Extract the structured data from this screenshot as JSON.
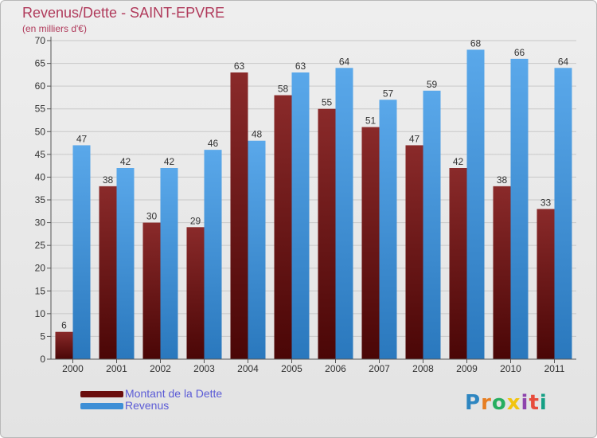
{
  "chart_data": {
    "type": "bar",
    "title": "Revenus/Dette - SAINT-EPVRE",
    "subtitle": "(en milliers d'€)",
    "categories": [
      "2000",
      "2001",
      "2002",
      "2003",
      "2004",
      "2005",
      "2006",
      "2007",
      "2008",
      "2009",
      "2010",
      "2011"
    ],
    "series": [
      {
        "name": "Montant de la Dette",
        "color": "#7a1a1a",
        "values": [
          6,
          38,
          30,
          29,
          63,
          58,
          55,
          51,
          47,
          42,
          38,
          33
        ]
      },
      {
        "name": "Revenus",
        "color": "#3d8fd6",
        "values": [
          47,
          42,
          42,
          46,
          48,
          63,
          64,
          57,
          59,
          68,
          66,
          64
        ]
      }
    ],
    "yticks": [
      0,
      5,
      10,
      15,
      20,
      25,
      30,
      35,
      40,
      45,
      50,
      55,
      60,
      65,
      70
    ],
    "ylim": [
      0,
      70
    ],
    "grid": true,
    "legend_position": "bottom-left"
  },
  "logo": {
    "letters": [
      "P",
      "r",
      "o",
      "x",
      "i",
      "t",
      "i"
    ],
    "colors": [
      "#2e86c1",
      "#e67e22",
      "#27ae60",
      "#f1c40f",
      "#8e44ad",
      "#e74c3c",
      "#16a085"
    ]
  }
}
